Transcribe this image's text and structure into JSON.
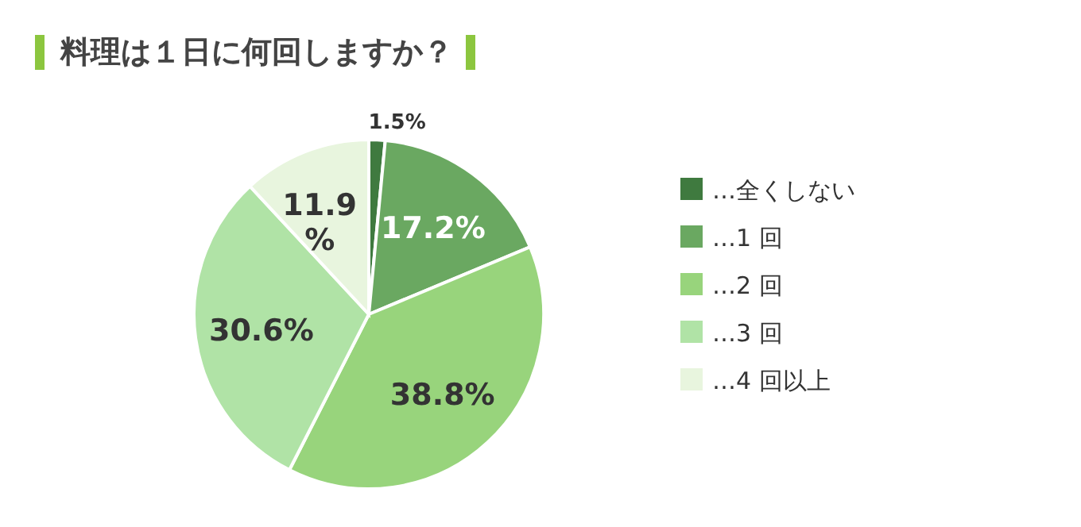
{
  "chart_data": {
    "type": "pie",
    "title": "料理は１日に何回しますか？",
    "categories": [
      "…全くしない",
      "…1 回",
      "…2 回",
      "…3 回",
      "…4 回以上"
    ],
    "values": [
      1.5,
      17.2,
      38.8,
      30.6,
      11.9
    ],
    "value_labels": [
      "1.5%",
      "17.2%",
      "38.8%",
      "30.6%",
      "11.9%"
    ],
    "colors": [
      "#3f7a3f",
      "#6aa861",
      "#98d47c",
      "#b0e3a6",
      "#e8f5de"
    ],
    "legend": "right"
  }
}
